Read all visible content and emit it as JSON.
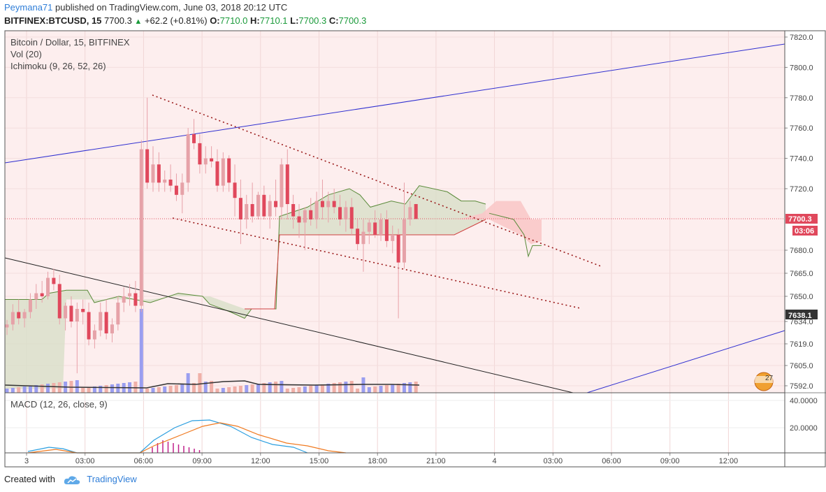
{
  "header": {
    "user": "Peymana71",
    "published_text": "published on TradingView.com, June 03, 2018 20:12 UTC",
    "symbol": "BITFINEX:BTCUSD, 15",
    "last": "7700.3",
    "change": "+62.2 (+0.81%)",
    "o_label": "O:",
    "o_val": "7710.0",
    "h_label": "H:",
    "h_val": "7710.1",
    "l_label": "L:",
    "l_val": "7700.3",
    "c_label": "C:",
    "c_val": "7700.3"
  },
  "legend": {
    "title": "Bitcoin / Dollar, 15, BITFINEX",
    "vol": "Vol (20)",
    "ichimoku": "Ichimoku (9, 26, 52, 26)",
    "macd": "MACD (12, 26, close, 9)"
  },
  "footer": {
    "created_with": "Created with",
    "brand": "TradingView"
  },
  "colors": {
    "up": "#e6a2a8",
    "down": "#e0485c",
    "wick": "#e8a0a8",
    "trend_blue": "#2f2fd0",
    "trend_black": "#222222",
    "dotted": "#9a1a1a",
    "cloud_green": "#d8dfc8",
    "cloud_red": "#f9c8c8",
    "macd": "#2c9fe0",
    "signal": "#f07a20"
  },
  "chart_data": {
    "type": "candlestick",
    "title": "Bitcoin / Dollar, 15, BITFINEX",
    "y_ticks": [
      "7820.0",
      "7800.0",
      "7780.0",
      "7760.0",
      "7740.0",
      "7720.0",
      "7680.0",
      "7665.0",
      "7650.0",
      "7634.0",
      "7619.0",
      "7605.0",
      "7592.0"
    ],
    "price_marker_last": "7700.3",
    "price_marker_timer": "03:06",
    "price_marker_ref": "7638.1",
    "x_ticks": [
      "3",
      "03:00",
      "06:00",
      "09:00",
      "12:00",
      "15:00",
      "18:00",
      "21:00",
      "4",
      "03:00",
      "06:00",
      "09:00",
      "12:00"
    ],
    "macd_ticks": [
      "40.0000",
      "20.0000"
    ],
    "badge": "27",
    "candles": [
      [
        7630,
        7635,
        7625,
        7632
      ],
      [
        7632,
        7645,
        7628,
        7640
      ],
      [
        7640,
        7648,
        7632,
        7636
      ],
      [
        7636,
        7642,
        7630,
        7640
      ],
      [
        7640,
        7652,
        7636,
        7648
      ],
      [
        7648,
        7658,
        7642,
        7652
      ],
      [
        7652,
        7660,
        7646,
        7650
      ],
      [
        7650,
        7666,
        7648,
        7662
      ],
      [
        7662,
        7668,
        7654,
        7658
      ],
      [
        7658,
        7664,
        7632,
        7636
      ],
      [
        7636,
        7646,
        7628,
        7644
      ],
      [
        7644,
        7650,
        7630,
        7634
      ],
      [
        7634,
        7646,
        7600,
        7642
      ],
      [
        7642,
        7648,
        7632,
        7640
      ],
      [
        7640,
        7646,
        7618,
        7622
      ],
      [
        7622,
        7632,
        7616,
        7628
      ],
      [
        7628,
        7646,
        7624,
        7640
      ],
      [
        7640,
        7648,
        7622,
        7626
      ],
      [
        7626,
        7636,
        7620,
        7632
      ],
      [
        7632,
        7650,
        7628,
        7646
      ],
      [
        7646,
        7656,
        7640,
        7650
      ],
      [
        7650,
        7658,
        7644,
        7652
      ],
      [
        7652,
        7660,
        7640,
        7644
      ],
      [
        7644,
        7752,
        7640,
        7746
      ],
      [
        7746,
        7780,
        7720,
        7724
      ],
      [
        7724,
        7748,
        7718,
        7736
      ],
      [
        7736,
        7744,
        7718,
        7724
      ],
      [
        7724,
        7732,
        7718,
        7726
      ],
      [
        7726,
        7736,
        7718,
        7722
      ],
      [
        7722,
        7730,
        7712,
        7716
      ],
      [
        7716,
        7730,
        7704,
        7724
      ],
      [
        7724,
        7760,
        7718,
        7756
      ],
      [
        7756,
        7766,
        7746,
        7750
      ],
      [
        7750,
        7756,
        7730,
        7736
      ],
      [
        7736,
        7748,
        7730,
        7740
      ],
      [
        7740,
        7748,
        7734,
        7738
      ],
      [
        7738,
        7746,
        7718,
        7722
      ],
      [
        7722,
        7744,
        7718,
        7740
      ],
      [
        7740,
        7742,
        7718,
        7724
      ],
      [
        7724,
        7736,
        7702,
        7714
      ],
      [
        7714,
        7726,
        7684,
        7700
      ],
      [
        7700,
        7716,
        7694,
        7710
      ],
      [
        7710,
        7724,
        7698,
        7702
      ],
      [
        7702,
        7718,
        7700,
        7716
      ],
      [
        7716,
        7722,
        7700,
        7702
      ],
      [
        7702,
        7716,
        7694,
        7712
      ],
      [
        7712,
        7726,
        7702,
        7708
      ],
      [
        7708,
        7740,
        7700,
        7736
      ],
      [
        7736,
        7746,
        7700,
        7710
      ],
      [
        7710,
        7716,
        7694,
        7702
      ],
      [
        7702,
        7710,
        7688,
        7698
      ],
      [
        7698,
        7708,
        7680,
        7706
      ],
      [
        7706,
        7714,
        7696,
        7700
      ],
      [
        7700,
        7718,
        7694,
        7712
      ],
      [
        7712,
        7726,
        7700,
        7708
      ],
      [
        7708,
        7718,
        7698,
        7712
      ],
      [
        7712,
        7720,
        7704,
        7708
      ],
      [
        7708,
        7716,
        7696,
        7700
      ],
      [
        7700,
        7712,
        7692,
        7708
      ],
      [
        7708,
        7714,
        7690,
        7694
      ],
      [
        7694,
        7700,
        7680,
        7684
      ],
      [
        7684,
        7700,
        7666,
        7692
      ],
      [
        7692,
        7700,
        7684,
        7698
      ],
      [
        7698,
        7706,
        7688,
        7690
      ],
      [
        7690,
        7704,
        7686,
        7700
      ],
      [
        7700,
        7706,
        7682,
        7686
      ],
      [
        7686,
        7696,
        7678,
        7690
      ],
      [
        7690,
        7694,
        7636,
        7672
      ],
      [
        7672,
        7724,
        7668,
        7700
      ],
      [
        7700,
        7712,
        7696,
        7708
      ],
      [
        7710,
        7710.1,
        7700.3,
        7700.3
      ]
    ]
  }
}
